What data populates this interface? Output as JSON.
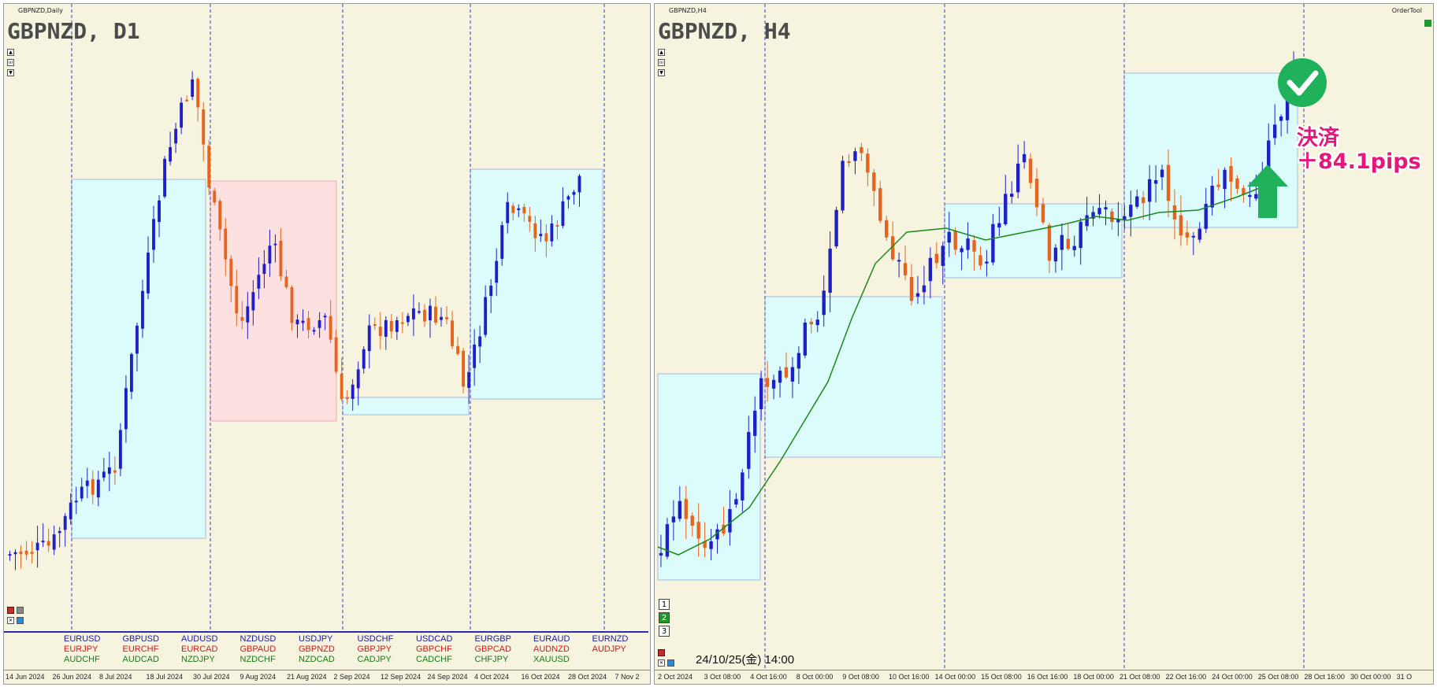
{
  "left_chart": {
    "window_title": "GBPNZD,Daily",
    "symbol_label": "GBPNZD, D1",
    "x_labels": [
      "14 Jun 2024",
      "26 Jun 2024",
      "8 Jul 2024",
      "18 Jul 2024",
      "30 Jul 2024",
      "9 Aug 2024",
      "21 Aug 2024",
      "2 Sep 2024",
      "12 Sep 2024",
      "24 Sep 2024",
      "4 Oct 2024",
      "16 Oct 2024",
      "28 Oct 2024",
      "7 Nov 2"
    ],
    "pairs": [
      [
        "EURUSD",
        "EURJPY",
        "AUDCHF"
      ],
      [
        "GBPUSD",
        "EURCHF",
        "AUDCAD"
      ],
      [
        "AUDUSD",
        "EURCAD",
        "NZDJPY"
      ],
      [
        "NZDUSD",
        "GBPAUD",
        "NZDCHF"
      ],
      [
        "USDJPY",
        "GBPNZD",
        "NZDCAD"
      ],
      [
        "USDCHF",
        "GBPJPY",
        "CADJPY"
      ],
      [
        "USDCAD",
        "GBPCHF",
        "CADCHF"
      ],
      [
        "EURGBP",
        "GBPCAD",
        "CHFJPY"
      ],
      [
        "EURAUD",
        "AUDNZD",
        "XAUUSD"
      ],
      [
        "EURNZD",
        "AUDJPY",
        ""
      ]
    ],
    "pair_colors": [
      "#1a1aa0",
      "#d01818",
      "#1a7a1a"
    ]
  },
  "right_chart": {
    "window_title": "GBPNZD,H4",
    "symbol_label": "GBPNZD, H4",
    "ordertool_label": "OrderTool",
    "datetime_label": "24/10/25(金) 14:00",
    "num_buttons": [
      "1",
      "2",
      "3"
    ],
    "x_labels": [
      "2 Oct 2024",
      "3 Oct 08:00",
      "4 Oct 16:00",
      "8 Oct 00:00",
      "9 Oct 08:00",
      "10 Oct 16:00",
      "14 Oct 00:00",
      "15 Oct 08:00",
      "16 Oct 16:00",
      "18 Oct 00:00",
      "21 Oct 08:00",
      "22 Oct 16:00",
      "24 Oct 00:00",
      "25 Oct 08:00",
      "28 Oct 16:00",
      "30 Oct 00:00",
      "31 O"
    ],
    "annotation_line1": "決済",
    "annotation_line2": "＋84.1pips"
  },
  "colors": {
    "chart_bg": "#f6f3df",
    "bull": "#1f1fc8",
    "bear": "#e8641e",
    "box_blue": "#dcfbfb",
    "box_red": "#fde0e0",
    "ma_line": "#1a8a1a",
    "annotation": "#e8157a",
    "check_green": "#1fb25a"
  }
}
